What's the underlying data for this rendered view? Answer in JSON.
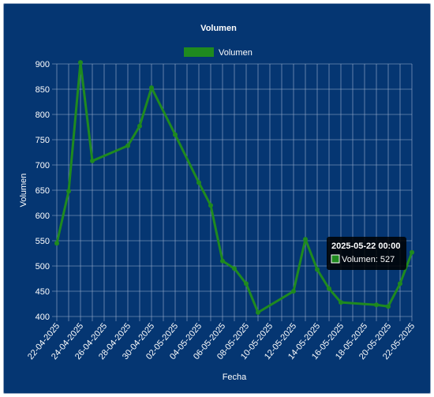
{
  "colors": {
    "background": "#053672",
    "series": "#1f8a1f",
    "grid": "#9fb3cf",
    "text": "#ffffff",
    "tooltip_bg": "#000000"
  },
  "chart_data": {
    "type": "line",
    "title": "Volumen",
    "xlabel": "Fecha",
    "ylabel": "Volumen",
    "ylim": [
      400,
      900
    ],
    "yticks": [
      400,
      450,
      500,
      550,
      600,
      650,
      700,
      750,
      800,
      850,
      900
    ],
    "x_tick_labels": [
      "22-04-2025",
      "24-04-2025",
      "26-04-2025",
      "28-04-2025",
      "30-04-2025",
      "02-05-2025",
      "04-05-2025",
      "06-05-2025",
      "08-05-2025",
      "10-05-2025",
      "12-05-2025",
      "14-05-2025",
      "16-05-2025",
      "18-05-2025",
      "20-05-2025",
      "22-05-2025"
    ],
    "grid": true,
    "legend_position": "top",
    "series": [
      {
        "name": "Volumen",
        "x": [
          "2025-04-22",
          "2025-04-23",
          "2025-04-24",
          "2025-04-25",
          "2025-04-28",
          "2025-04-29",
          "2025-04-30",
          "2025-05-02",
          "2025-05-04",
          "2025-05-05",
          "2025-05-06",
          "2025-05-07",
          "2025-05-08",
          "2025-05-09",
          "2025-05-12",
          "2025-05-13",
          "2025-05-14",
          "2025-05-15",
          "2025-05-16",
          "2025-05-19",
          "2025-05-20",
          "2025-05-21",
          "2025-05-22"
        ],
        "y": [
          545,
          648,
          903,
          708,
          738,
          777,
          853,
          760,
          665,
          620,
          510,
          495,
          465,
          408,
          450,
          553,
          493,
          455,
          428,
          423,
          420,
          465,
          527
        ]
      }
    ],
    "tooltip": {
      "title": "2025-05-22 00:00",
      "label": "Volumen: 527"
    }
  }
}
